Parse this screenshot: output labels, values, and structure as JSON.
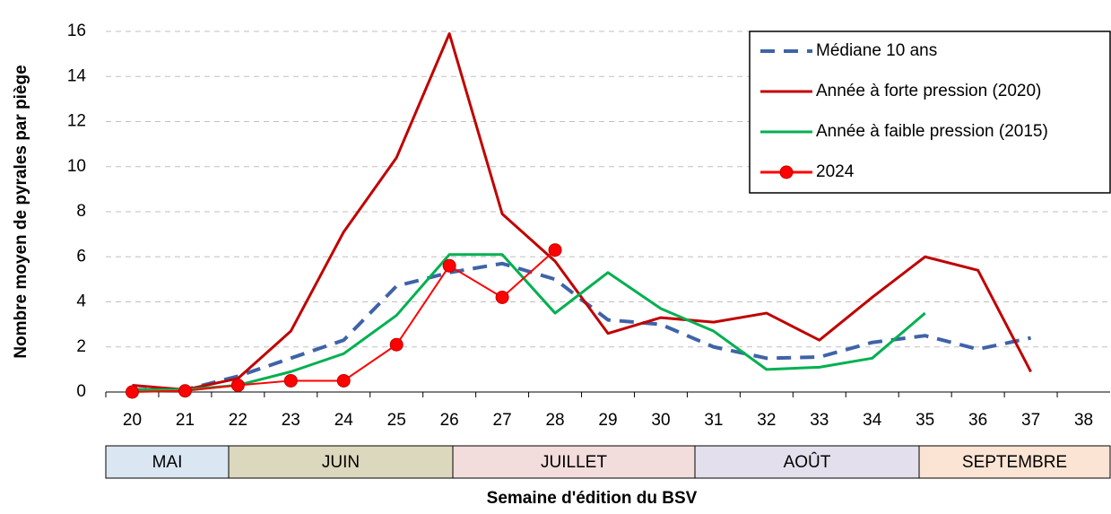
{
  "chart_data": {
    "type": "line",
    "y_label": "Nombre moyen de pyrales par piège",
    "x_label": "Semaine d'édition du BSV",
    "categories": [
      "20",
      "21",
      "22",
      "23",
      "24",
      "25",
      "26",
      "27",
      "28",
      "29",
      "30",
      "31",
      "32",
      "33",
      "34",
      "35",
      "36",
      "37",
      "38"
    ],
    "series": [
      {
        "name": "Médiane 10 ans",
        "color": "#3f63a8",
        "dash": true,
        "values": [
          0.1,
          0.1,
          0.7,
          1.5,
          2.3,
          4.7,
          5.3,
          5.7,
          5.0,
          3.2,
          3.0,
          2.0,
          1.5,
          1.55,
          2.2,
          2.5,
          1.9,
          2.4,
          null
        ]
      },
      {
        "name": "Année à forte pression (2020)",
        "color": "#c00000",
        "values": [
          0.3,
          0.1,
          0.6,
          2.7,
          7.1,
          10.4,
          15.9,
          7.9,
          5.8,
          2.6,
          3.3,
          3.1,
          3.5,
          2.3,
          4.2,
          6.0,
          5.4,
          0.9,
          null
        ]
      },
      {
        "name": "Année à faible pression (2015)",
        "color": "#00b050",
        "values": [
          0.1,
          0.1,
          0.3,
          0.9,
          1.7,
          3.4,
          6.1,
          6.1,
          3.5,
          5.3,
          3.7,
          2.7,
          1.0,
          1.1,
          1.5,
          3.5,
          null,
          null,
          null
        ]
      },
      {
        "name": "2024",
        "color": "#ff0000",
        "marker": "circle",
        "values": [
          0.0,
          0.05,
          0.3,
          0.5,
          0.5,
          2.1,
          5.6,
          4.2,
          6.3,
          null,
          null,
          null,
          null,
          null,
          null,
          null,
          null,
          null,
          null
        ]
      }
    ],
    "months": [
      "MAI",
      "JUIN",
      "JUILLET",
      "AOÛT",
      "SEPTEMBRE"
    ],
    "ylim": [
      0,
      16
    ],
    "yticks": [
      0,
      2,
      4,
      6,
      8,
      10,
      12,
      14,
      16
    ],
    "grid": true,
    "legend": "upper right"
  }
}
